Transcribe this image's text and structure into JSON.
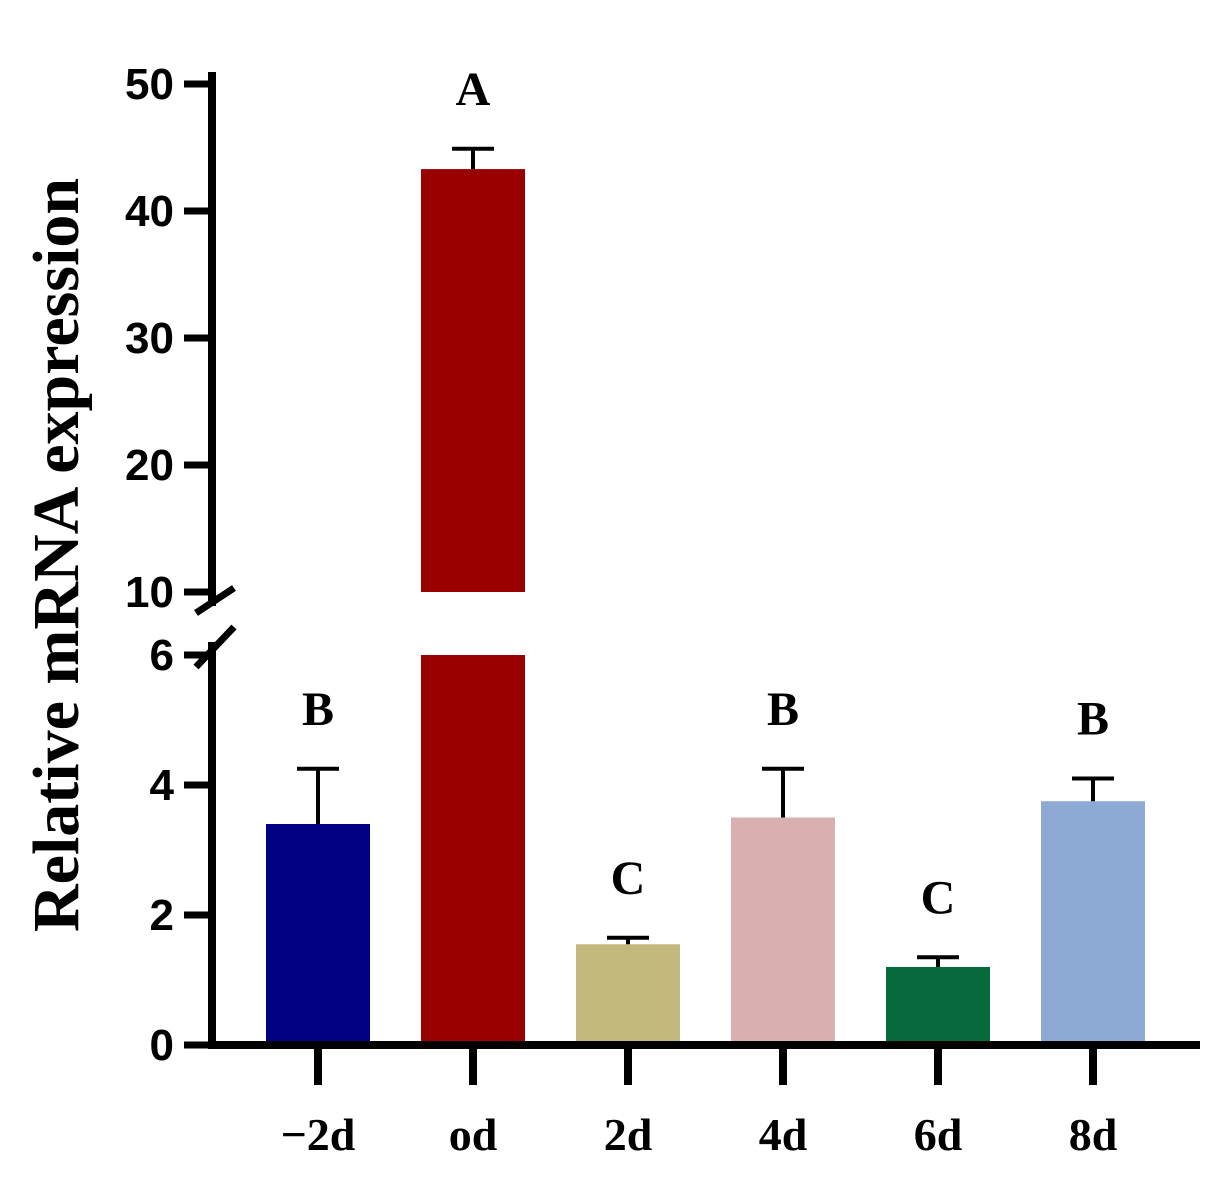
{
  "chart_data": {
    "type": "bar",
    "title": "",
    "xlabel": "",
    "ylabel": "Relative mRNA expression",
    "categories": [
      "−2d",
      "od",
      "2d",
      "4d",
      "6d",
      "8d"
    ],
    "values": [
      3.4,
      43.3,
      1.55,
      3.5,
      1.2,
      3.75
    ],
    "errors": [
      0.85,
      1.6,
      0.1,
      0.75,
      0.15,
      0.35
    ],
    "significance": [
      "B",
      "A",
      "C",
      "B",
      "C",
      "B"
    ],
    "colors": [
      "#000080",
      "#9b0000",
      "#c2b87e",
      "#d8b0b0",
      "#066a3c",
      "#8daad4"
    ],
    "axis_break": [
      6,
      10
    ],
    "ylim": [
      0,
      50
    ],
    "yticks": [
      "0",
      "2",
      "4",
      "6",
      "10",
      "20",
      "30",
      "40",
      "50"
    ],
    "grid": false
  }
}
